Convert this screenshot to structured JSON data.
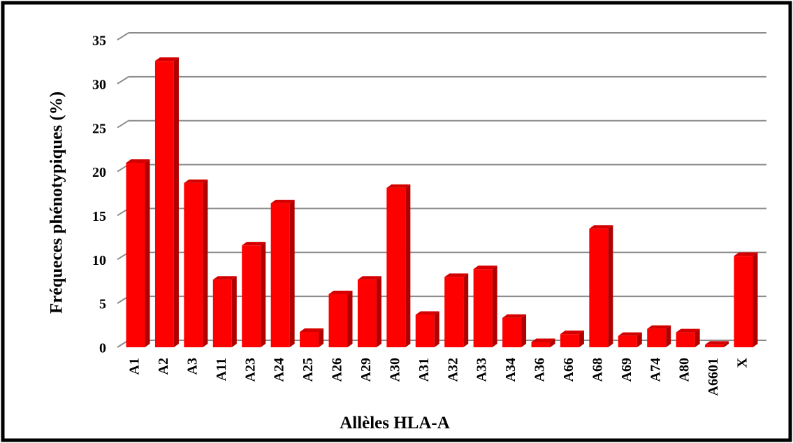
{
  "chart_data": {
    "type": "bar3d",
    "categories": [
      "A1",
      "A2",
      "A3",
      "A11",
      "A23",
      "A24",
      "A25",
      "A26",
      "A29",
      "A30",
      "A31",
      "A32",
      "A33",
      "A34",
      "A36",
      "A66",
      "A68",
      "A69",
      "A74",
      "A80",
      "A6601",
      "X"
    ],
    "values": [
      21.0,
      32.6,
      18.7,
      7.7,
      11.6,
      16.4,
      1.75,
      6.05,
      7.7,
      18.15,
      3.7,
      8.0,
      8.9,
      3.35,
      0.6,
      1.5,
      13.5,
      1.3,
      2.1,
      1.7,
      0.3,
      10.4
    ],
    "color": "#ff0000",
    "xlabel": "Allèles HLA-A",
    "ylabel": "Fréqueces phénotypiques (%)",
    "ylim": [
      0,
      35
    ],
    "yticks": [
      0,
      5,
      10,
      15,
      20,
      25,
      30,
      35
    ],
    "grid": true
  }
}
